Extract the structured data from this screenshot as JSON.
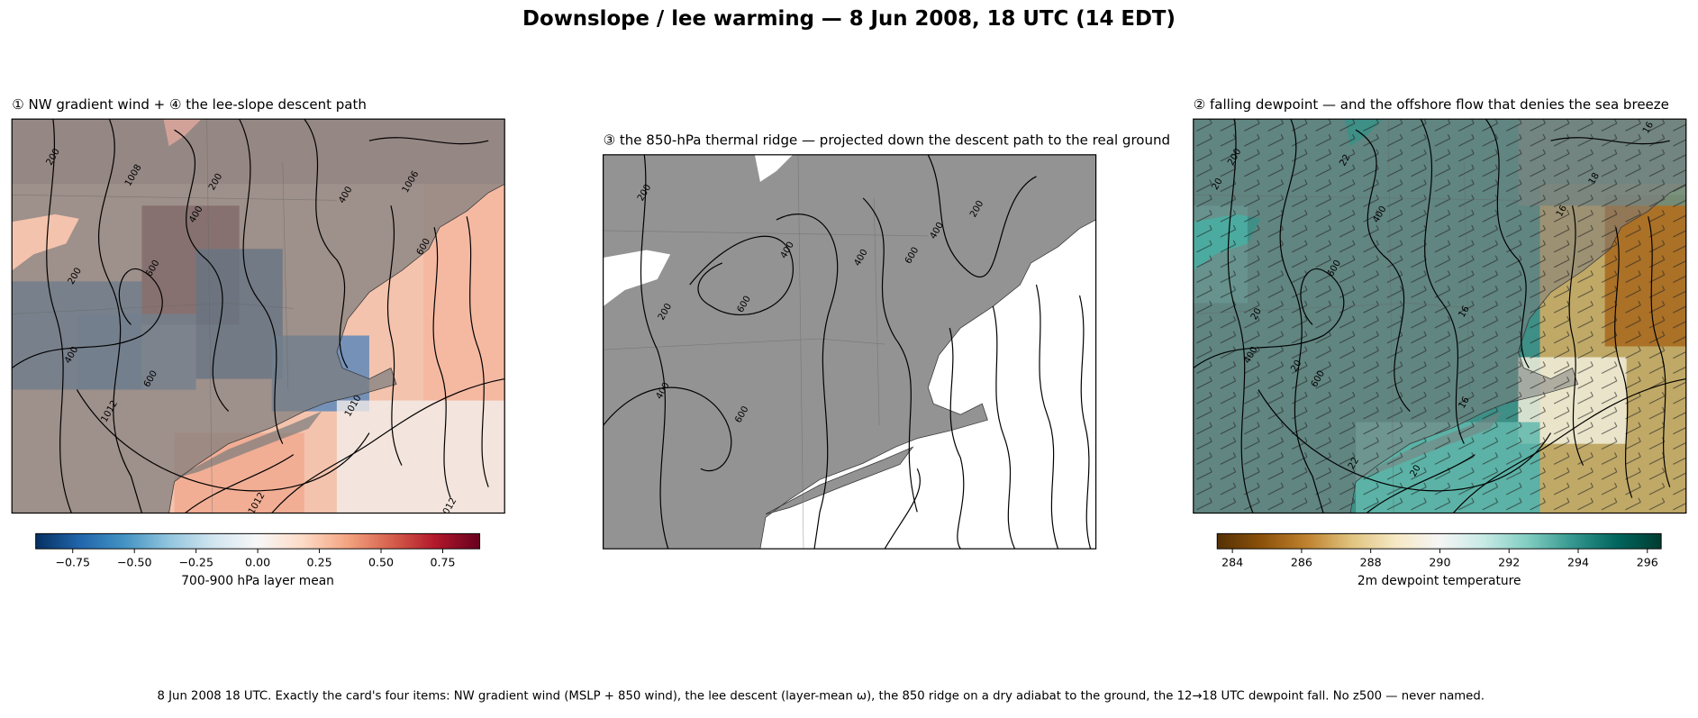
{
  "title": "Downslope / lee warming — 8 Jun 2008, 18 UTC (14 EDT)",
  "panels": [
    {
      "title": "① NW gradient wind + ④ the lee-slope descent path",
      "contour_labels": [
        "200",
        "1008",
        "400",
        "200",
        "1006",
        "400",
        "600",
        "200",
        "600",
        "400",
        "600",
        "1012",
        "1010",
        "1012",
        "1012"
      ],
      "colorbar": {
        "label": "700-900 hPa layer mean",
        "cmap": "RdBu_r",
        "lim": [
          -0.9,
          0.9
        ],
        "ticks": [
          {
            "value": -0.75,
            "label": "−0.75"
          },
          {
            "value": -0.5,
            "label": "−0.50"
          },
          {
            "value": -0.25,
            "label": "−0.25"
          },
          {
            "value": 0,
            "label": "0.00"
          },
          0.25,
          {
            "value": 0.5,
            "label": "0.50"
          },
          0.75
        ]
      }
    },
    {
      "title": "③ the 850-hPa thermal ridge — projected down the descent path to the real ground",
      "contour_labels": [
        "200",
        "200",
        "400",
        "400",
        "400",
        "200",
        "400",
        "600",
        "600",
        "600"
      ]
    },
    {
      "title": "② falling dewpoint — and the offshore flow that denies the sea breeze",
      "contour_labels": [
        "200",
        "22",
        "16",
        "18",
        "16",
        "20",
        "400",
        "600",
        "16",
        "20",
        "400",
        "20",
        "600",
        "16",
        "22",
        "20"
      ],
      "colorbar": {
        "label": "2m dewpoint temperature",
        "cmap": "BrBG",
        "lim": [
          283.56,
          296.4
        ],
        "ticks": [
          284,
          286,
          288,
          290,
          292,
          294,
          296
        ]
      }
    }
  ],
  "footnote": "8 Jun 2008 18 UTC. Exactly the card's four items: NW gradient wind (MSLP + 850 wind), the lee descent (layer-mean ω), the 850 ridge on a dry adiabat to the ground, the 12→18 UTC dewpoint fall. No z500 — never named."
}
